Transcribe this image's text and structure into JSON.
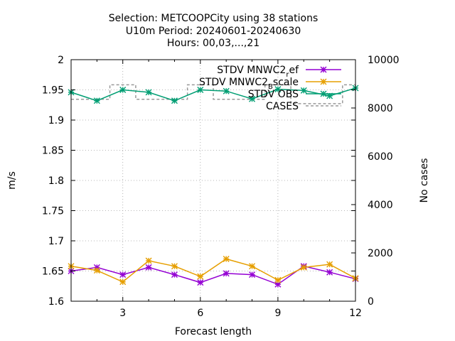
{
  "chart_data": {
    "type": "line",
    "title_lines": [
      "Selection: METCOOPCity using     38 stations",
      "U10m   Period: 20240601-20240630",
      "Hours: 00,03,...,21"
    ],
    "xlabel": "Forecast length",
    "ylabel": "m/s",
    "y2label": "No cases",
    "xlim": [
      1,
      12
    ],
    "ylim": [
      1.6,
      2.0
    ],
    "y2lim": [
      0,
      10000
    ],
    "xticks": [
      3,
      6,
      9,
      12
    ],
    "yticks": [
      1.6,
      1.65,
      1.7,
      1.75,
      1.8,
      1.85,
      1.9,
      1.95,
      2.0
    ],
    "ytick_labels": [
      "1.6",
      "1.65",
      "1.7",
      "1.75",
      "1.8",
      "1.85",
      "1.9",
      "1.95",
      "2"
    ],
    "y2ticks": [
      0,
      2000,
      4000,
      6000,
      8000,
      10000
    ],
    "grid": true,
    "legend_position": "top-right",
    "x": [
      1,
      2,
      3,
      4,
      5,
      6,
      7,
      8,
      9,
      10,
      11,
      12
    ],
    "series": [
      {
        "name": "STDV MNWC2_ref",
        "legend_main": "STDV MNWC2",
        "legend_sub": "r",
        "legend_tail": "ef",
        "axis": "y",
        "color": "#9400d3",
        "dashed": false,
        "marker": "star",
        "values": [
          1.65,
          1.656,
          1.644,
          1.656,
          1.644,
          1.631,
          1.646,
          1.644,
          1.628,
          1.658,
          1.648,
          1.637
        ]
      },
      {
        "name": "STDV MNWC2_Bscale",
        "legend_main": "STDV MNWC2",
        "legend_sub": "B",
        "legend_tail": "scale",
        "axis": "y",
        "color": "#e69f00",
        "dashed": false,
        "marker": "star",
        "values": [
          1.658,
          1.651,
          1.632,
          1.667,
          1.658,
          1.641,
          1.67,
          1.658,
          1.635,
          1.656,
          1.661,
          1.638
        ]
      },
      {
        "name": "STDV OBS",
        "legend_main": "STDV OBS",
        "axis": "y",
        "color": "#009e73",
        "dashed": false,
        "marker": "star",
        "values": [
          1.946,
          1.932,
          1.95,
          1.946,
          1.932,
          1.95,
          1.948,
          1.935,
          1.951,
          1.949,
          1.94,
          1.953
        ]
      },
      {
        "name": "CASES",
        "legend_main": "CASES",
        "axis": "y2",
        "color": "#999999",
        "dashed": true,
        "marker": "none",
        "values": [
          8360,
          8360,
          8960,
          8360,
          8360,
          8960,
          8360,
          8360,
          8960,
          8180,
          8180,
          8960
        ]
      }
    ]
  }
}
